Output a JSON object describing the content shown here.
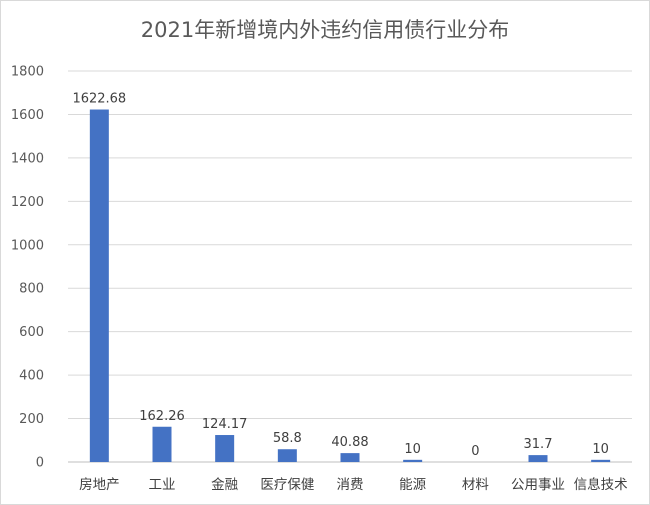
{
  "chart_data": {
    "type": "bar",
    "title": "2021年新增境内外违约信用债行业分布",
    "categories": [
      "房地产",
      "工业",
      "金融",
      "医疗保健",
      "消费",
      "能源",
      "材料",
      "公用事业",
      "信息技术"
    ],
    "values": [
      1622.68,
      162.26,
      124.17,
      58.8,
      40.88,
      10,
      0,
      31.7,
      10
    ],
    "data_labels": [
      "1622.68",
      "162.26",
      "124.17",
      "58.8",
      "40.88",
      "10",
      "0",
      "31.7",
      "10"
    ],
    "ylim": [
      0,
      1800
    ],
    "yticks": [
      0,
      200,
      400,
      600,
      800,
      1000,
      1200,
      1400,
      1600,
      1800
    ],
    "grid": true,
    "legend": "none",
    "bar_color": "#4472c4",
    "xlabel": "",
    "ylabel": ""
  }
}
